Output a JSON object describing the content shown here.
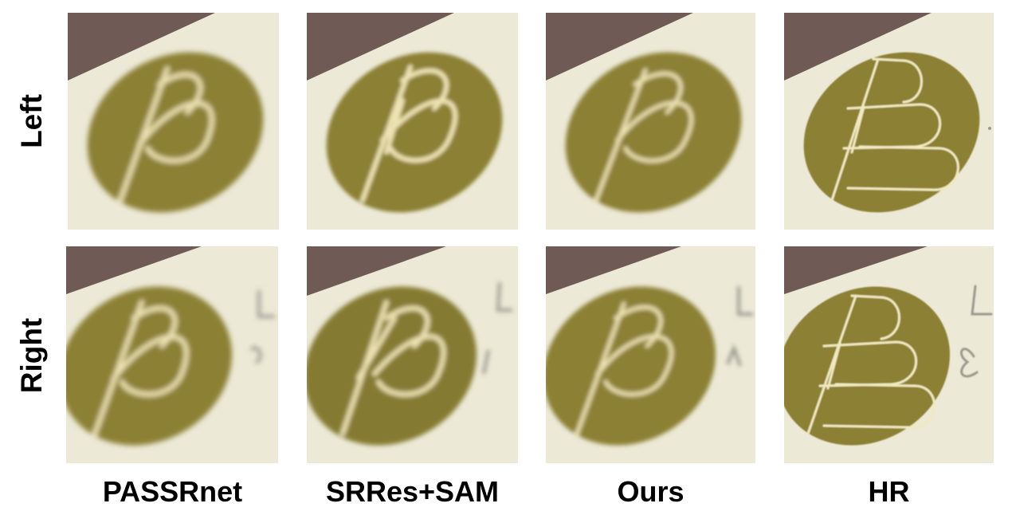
{
  "rows": [
    {
      "label": "Left"
    },
    {
      "label": "Right"
    }
  ],
  "columns": [
    {
      "label": "PASSRnet"
    },
    {
      "label": "SRRes+SAM"
    },
    {
      "label": "Ours"
    },
    {
      "label": "HR"
    }
  ],
  "colors": {
    "background_paper": "#ece9d6",
    "dark_corner": "#6f5a55",
    "seal_fill": "#8c8035",
    "seal_stroke": "#efe6b8",
    "text_gray": "#9a9a90"
  }
}
